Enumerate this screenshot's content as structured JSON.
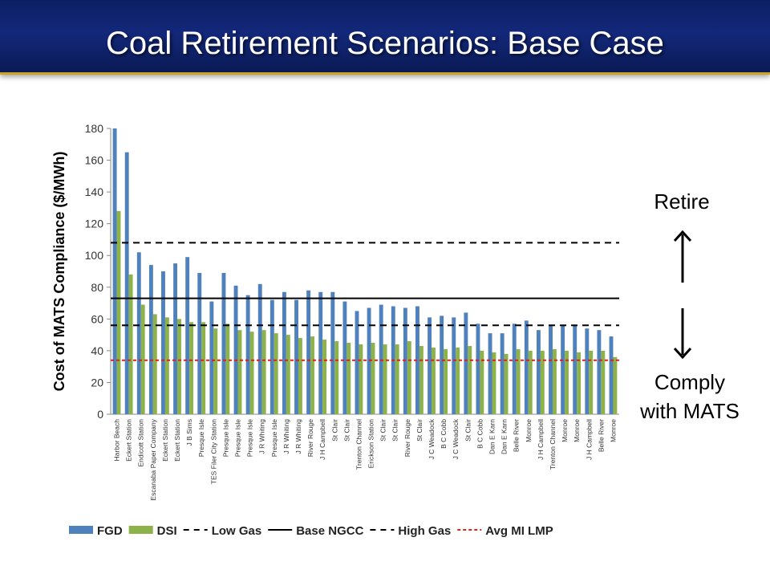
{
  "slide": {
    "title": "Coal Retirement Scenarios: Base Case",
    "retire_label": "Retire",
    "comply_label_line1": "Comply",
    "comply_label_line2": "with MATS"
  },
  "colors": {
    "fgd": "#4f81bd",
    "dsi": "#8db24a",
    "low_gas": "#000000",
    "base_ngcc": "#000000",
    "high_gas": "#000000",
    "avg_lmp": "#e0201b"
  },
  "chart_data": {
    "type": "bar",
    "ylabel": "Cost of MATS Compliance ($/MWh)",
    "xlabel": "",
    "ylim": [
      0,
      180
    ],
    "yticks": [
      0,
      20,
      40,
      60,
      80,
      100,
      120,
      140,
      160,
      180
    ],
    "grid": false,
    "legend_position": "bottom",
    "categories": [
      "Harbor Beach",
      "Eckert Station",
      "Endicott Station",
      "Escanaba Paper Company",
      "Eckert Station",
      "Eckert Station",
      "J B Sims",
      "Presque Isle",
      "TES Filer City Station",
      "Presque Isle",
      "Presque Isle",
      "Presque Isle",
      "J R Whiting",
      "Presque Isle",
      "J R Whiting",
      "J R Whiting",
      "River Rouge",
      "J H Campbell",
      "St Clair",
      "St Clair",
      "Trenton Channel",
      "Erickson Station",
      "St Clair",
      "St Clair",
      "River Rouge",
      "St Clair",
      "J C Weadock",
      "B C Cobb",
      "J C Weadock",
      "St Clair",
      "B C Cobb",
      "Dan E Karn",
      "Dan E Karn",
      "Belle River",
      "Monroe",
      "J H Campbell",
      "Trenton Channel",
      "Monroe",
      "Monroe",
      "J H Campbell",
      "Belle River",
      "Monroe"
    ],
    "series": [
      {
        "name": "FGD",
        "values": [
          180,
          165,
          102,
          94,
          90,
          95,
          99,
          89,
          71,
          89,
          81,
          75,
          82,
          72,
          77,
          72,
          78,
          77,
          77,
          71,
          65,
          67,
          69,
          68,
          67,
          68,
          61,
          62,
          61,
          64,
          57,
          51,
          51,
          57,
          59,
          53,
          56,
          56,
          56,
          54,
          53,
          49
        ]
      },
      {
        "name": "DSI",
        "values": [
          128,
          88,
          69,
          63,
          61,
          60,
          58,
          58,
          54,
          57,
          53,
          52,
          53,
          51,
          50,
          48,
          49,
          47,
          46,
          45,
          44,
          45,
          44,
          44,
          46,
          43,
          42,
          41,
          42,
          43,
          40,
          39,
          38,
          41,
          40,
          40,
          41,
          40,
          39,
          40,
          40,
          36
        ]
      }
    ],
    "reference_lines": [
      {
        "name": "Low Gas",
        "value": 56,
        "style": "dashed"
      },
      {
        "name": "Base NGCC",
        "value": 73,
        "style": "solid"
      },
      {
        "name": "High Gas",
        "value": 108,
        "style": "dashed"
      },
      {
        "name": "Avg MI LMP",
        "value": 34,
        "style": "dotted"
      }
    ]
  }
}
